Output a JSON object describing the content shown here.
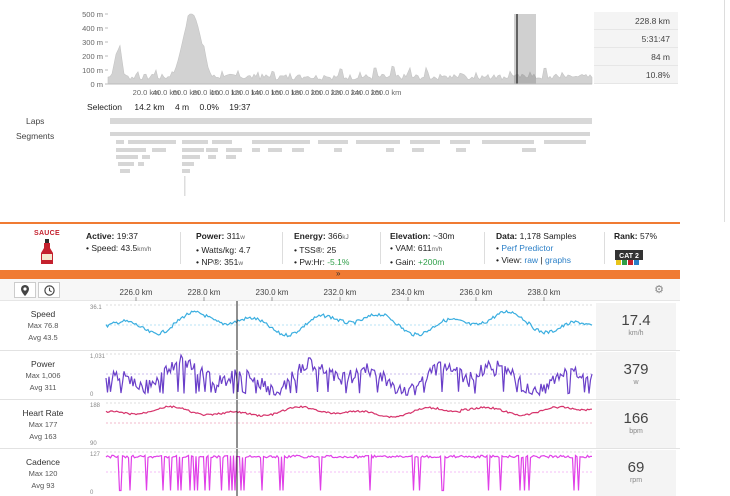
{
  "overview": {
    "y_ticks": [
      "500 m",
      "400 m",
      "300 m",
      "200 m",
      "100 m",
      "0 m"
    ],
    "x_ticks": [
      "20.0 km",
      "40.0 km",
      "60.0 km",
      "80.0 km",
      "100.0 km",
      "120.0 km",
      "140.0 km",
      "160.0 km",
      "180.0 km",
      "200.0 km",
      "220.0 km",
      "240.0 km",
      "260.0 km"
    ],
    "stats": [
      "228.8 km",
      "5:31:47",
      "84 m",
      "10.8%"
    ],
    "selection": {
      "label": "Selection",
      "distance": "14.2 km",
      "elevation": "4 m",
      "grade": "0.0%",
      "time": "19:37"
    },
    "laps_label": "Laps",
    "segments_label": "Segments"
  },
  "sauce": {
    "brand": "SAUCE",
    "active_label": "Active:",
    "active_value": "19:37",
    "speed_label": "Speed:",
    "speed_value": "43.5",
    "speed_unit": "km/h",
    "power_label": "Power:",
    "power_value": "311",
    "power_unit": "w",
    "wkg_label": "Watts/kg:",
    "wkg_value": "4.7",
    "np_label": "NP®:",
    "np_value": "351",
    "np_unit": "w",
    "energy_label": "Energy:",
    "energy_value": "366",
    "energy_unit": "kJ",
    "tss_label": "TSS®:",
    "tss_value": "25",
    "pwhr_label": "Pw:Hr:",
    "pwhr_value": "-5.1%",
    "elev_label": "Elevation:",
    "elev_value": "~30m",
    "vam_label": "VAM:",
    "vam_value": "611",
    "vam_unit": "m/h",
    "gain_label": "Gain:",
    "gain_value": "+200m",
    "data_label": "Data:",
    "data_value": "1,178 Samples",
    "perf_link": "Perf Predictor",
    "view_label": "View:",
    "view_raw": "raw",
    "view_sep": "|",
    "view_graphs": "graphs",
    "rank_label": "Rank:",
    "rank_value": "57%",
    "cat_badge": "CAT 2",
    "expand_glyph": "»"
  },
  "graphs": {
    "x_ticks": [
      "226.0 km",
      "228.0 km",
      "230.0 km",
      "232.0 km",
      "234.0 km",
      "236.0 km",
      "238.0 km"
    ],
    "rows": [
      {
        "name": "Speed",
        "max": "Max 76.8",
        "avg": "Avg 43.5",
        "value": "17.4",
        "unit": "km/h",
        "top_tick": "36.1",
        "bottom_tick": "",
        "color": "#3aaee0"
      },
      {
        "name": "Power",
        "max": "Max 1,006",
        "avg": "Avg 311",
        "value": "379",
        "unit": "w",
        "top_tick": "1,031",
        "bottom_tick": "0",
        "color": "#6a3fc9"
      },
      {
        "name": "Heart Rate",
        "max": "Max 177",
        "avg": "Avg 163",
        "value": "166",
        "unit": "bpm",
        "top_tick": "188",
        "bottom_tick": "90",
        "color": "#d6336b"
      },
      {
        "name": "Cadence",
        "max": "Max 120",
        "avg": "Avg 93",
        "value": "69",
        "unit": "rpm",
        "top_tick": "127",
        "bottom_tick": "0",
        "color": "#e040e8"
      }
    ]
  },
  "colors": {
    "accent": "#f07b33",
    "link": "#2a7fc7",
    "good": "#2e9e48"
  }
}
